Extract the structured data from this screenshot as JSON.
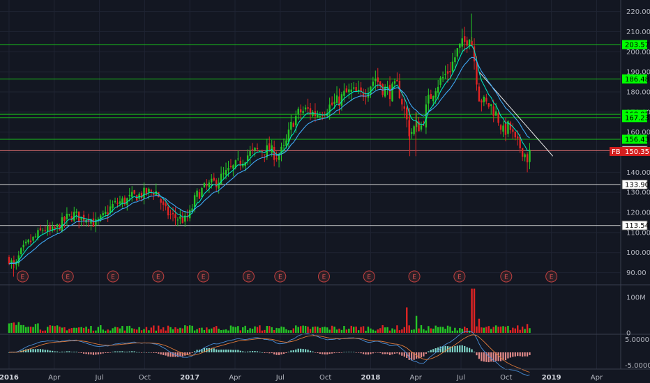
{
  "chart_data": {
    "type": "candlestick",
    "symbol": "FB",
    "last_price": 150.35,
    "colors": {
      "up": "#26c626",
      "down": "#e02424",
      "ma_fast": "#00e0c0",
      "ma_slow": "#3fa9f5",
      "level_green": "#19c219",
      "level_white": "#d8d8d8",
      "level_red": "#e07070",
      "background": "#131722",
      "grid": "#1f2433"
    },
    "price_axis": {
      "ticks": [
        90,
        100,
        110,
        120,
        130,
        140,
        150,
        160,
        170,
        180,
        190,
        200,
        210,
        220
      ],
      "range": [
        85,
        223
      ]
    },
    "x_axis": {
      "ticks": [
        {
          "label": "2016",
          "t": 0.0,
          "year": true
        },
        {
          "label": "Apr",
          "t": 3.0
        },
        {
          "label": "Jul",
          "t": 6.0
        },
        {
          "label": "Oct",
          "t": 9.0
        },
        {
          "label": "2017",
          "t": 12.0,
          "year": true
        },
        {
          "label": "Apr",
          "t": 15.0
        },
        {
          "label": "Jul",
          "t": 18.0
        },
        {
          "label": "Oct",
          "t": 21.0
        },
        {
          "label": "2018",
          "t": 24.0,
          "year": true
        },
        {
          "label": "Apr",
          "t": 27.0
        },
        {
          "label": "Jul",
          "t": 30.0
        },
        {
          "label": "Oct",
          "t": 33.0
        },
        {
          "label": "2019",
          "t": 36.0,
          "year": true
        },
        {
          "label": "Apr",
          "t": 39.0
        }
      ],
      "range_months": [
        -0.6,
        40.6
      ]
    },
    "price_path": [
      [
        0.0,
        97
      ],
      [
        0.4,
        92
      ],
      [
        0.7,
        99
      ],
      [
        1.2,
        104
      ],
      [
        1.8,
        108
      ],
      [
        2.3,
        112
      ],
      [
        2.8,
        110
      ],
      [
        3.3,
        113
      ],
      [
        3.8,
        117
      ],
      [
        4.3,
        119
      ],
      [
        4.8,
        117
      ],
      [
        5.3,
        118
      ],
      [
        5.7,
        114
      ],
      [
        6.2,
        117
      ],
      [
        6.8,
        123
      ],
      [
        7.3,
        125
      ],
      [
        7.8,
        126
      ],
      [
        8.3,
        128
      ],
      [
        8.8,
        129
      ],
      [
        9.3,
        130
      ],
      [
        9.7,
        131
      ],
      [
        10.0,
        127
      ],
      [
        10.3,
        121
      ],
      [
        10.8,
        118
      ],
      [
        11.3,
        117
      ],
      [
        11.7,
        116
      ],
      [
        12.0,
        119
      ],
      [
        12.4,
        128
      ],
      [
        12.8,
        131
      ],
      [
        13.2,
        133
      ],
      [
        13.7,
        135
      ],
      [
        14.2,
        138
      ],
      [
        14.7,
        141
      ],
      [
        15.2,
        144
      ],
      [
        15.7,
        148
      ],
      [
        16.2,
        150
      ],
      [
        16.7,
        151
      ],
      [
        17.3,
        151
      ],
      [
        17.8,
        148
      ],
      [
        18.3,
        152
      ],
      [
        18.8,
        165
      ],
      [
        19.3,
        170
      ],
      [
        19.8,
        171
      ],
      [
        20.3,
        169
      ],
      [
        20.8,
        171
      ],
      [
        21.3,
        173
      ],
      [
        21.8,
        175
      ],
      [
        22.3,
        179
      ],
      [
        22.8,
        180
      ],
      [
        23.3,
        178
      ],
      [
        23.8,
        182
      ],
      [
        24.3,
        187
      ],
      [
        24.8,
        182
      ],
      [
        25.3,
        180
      ],
      [
        25.8,
        183
      ],
      [
        26.2,
        172
      ],
      [
        26.6,
        159
      ],
      [
        27.0,
        163
      ],
      [
        27.4,
        163
      ],
      [
        27.8,
        175
      ],
      [
        28.3,
        183
      ],
      [
        28.8,
        187
      ],
      [
        29.3,
        192
      ],
      [
        29.8,
        201
      ],
      [
        30.3,
        205
      ],
      [
        30.6,
        210
      ],
      [
        30.9,
        195
      ],
      [
        31.2,
        178
      ],
      [
        31.6,
        174
      ],
      [
        32.0,
        173
      ],
      [
        32.4,
        168
      ],
      [
        32.8,
        160
      ],
      [
        33.2,
        163
      ],
      [
        33.6,
        155
      ],
      [
        34.0,
        152
      ],
      [
        34.4,
        147
      ],
      [
        34.6,
        150
      ]
    ],
    "levels": [
      {
        "value": 203.57,
        "label": "203.57",
        "style": "green"
      },
      {
        "value": 186.48,
        "label": "186.48",
        "style": "green"
      },
      {
        "value": 168.85,
        "label": "168.85",
        "style": "green"
      },
      {
        "value": 167.23,
        "label": "167.23",
        "style": "green"
      },
      {
        "value": 156.43,
        "label": "156.43",
        "style": "green"
      },
      {
        "value": 150.75,
        "label": "150.75",
        "style": "red"
      },
      {
        "value": 133.9,
        "label": "133.90",
        "style": "white"
      },
      {
        "value": 113.54,
        "label": "113.54",
        "style": "white"
      }
    ],
    "current_price_label": {
      "symbol": "FB",
      "value": "150.35"
    },
    "trendline": [
      [
        31.2,
        190
      ],
      [
        36.1,
        148
      ]
    ],
    "earnings_events": {
      "label": "E",
      "t": [
        0.9,
        3.9,
        6.9,
        9.9,
        12.9,
        15.9,
        18.0,
        20.9,
        23.9,
        26.9,
        29.9,
        33.0,
        36.0
      ]
    },
    "volume": {
      "axis_ticks": [
        {
          "label": "100M",
          "value": 100
        },
        {
          "label": "0",
          "value": 0
        }
      ],
      "max": 130,
      "spikes": [
        [
          26.4,
          72
        ],
        [
          27.0,
          48
        ],
        [
          30.8,
          125
        ],
        [
          31.2,
          40
        ],
        [
          34.4,
          25
        ]
      ]
    },
    "macd": {
      "axis_ticks": [
        {
          "label": "5.0000",
          "value": 5
        },
        {
          "label": "-5.0000",
          "value": -5
        }
      ],
      "range": [
        -6.5,
        6.5
      ]
    }
  }
}
